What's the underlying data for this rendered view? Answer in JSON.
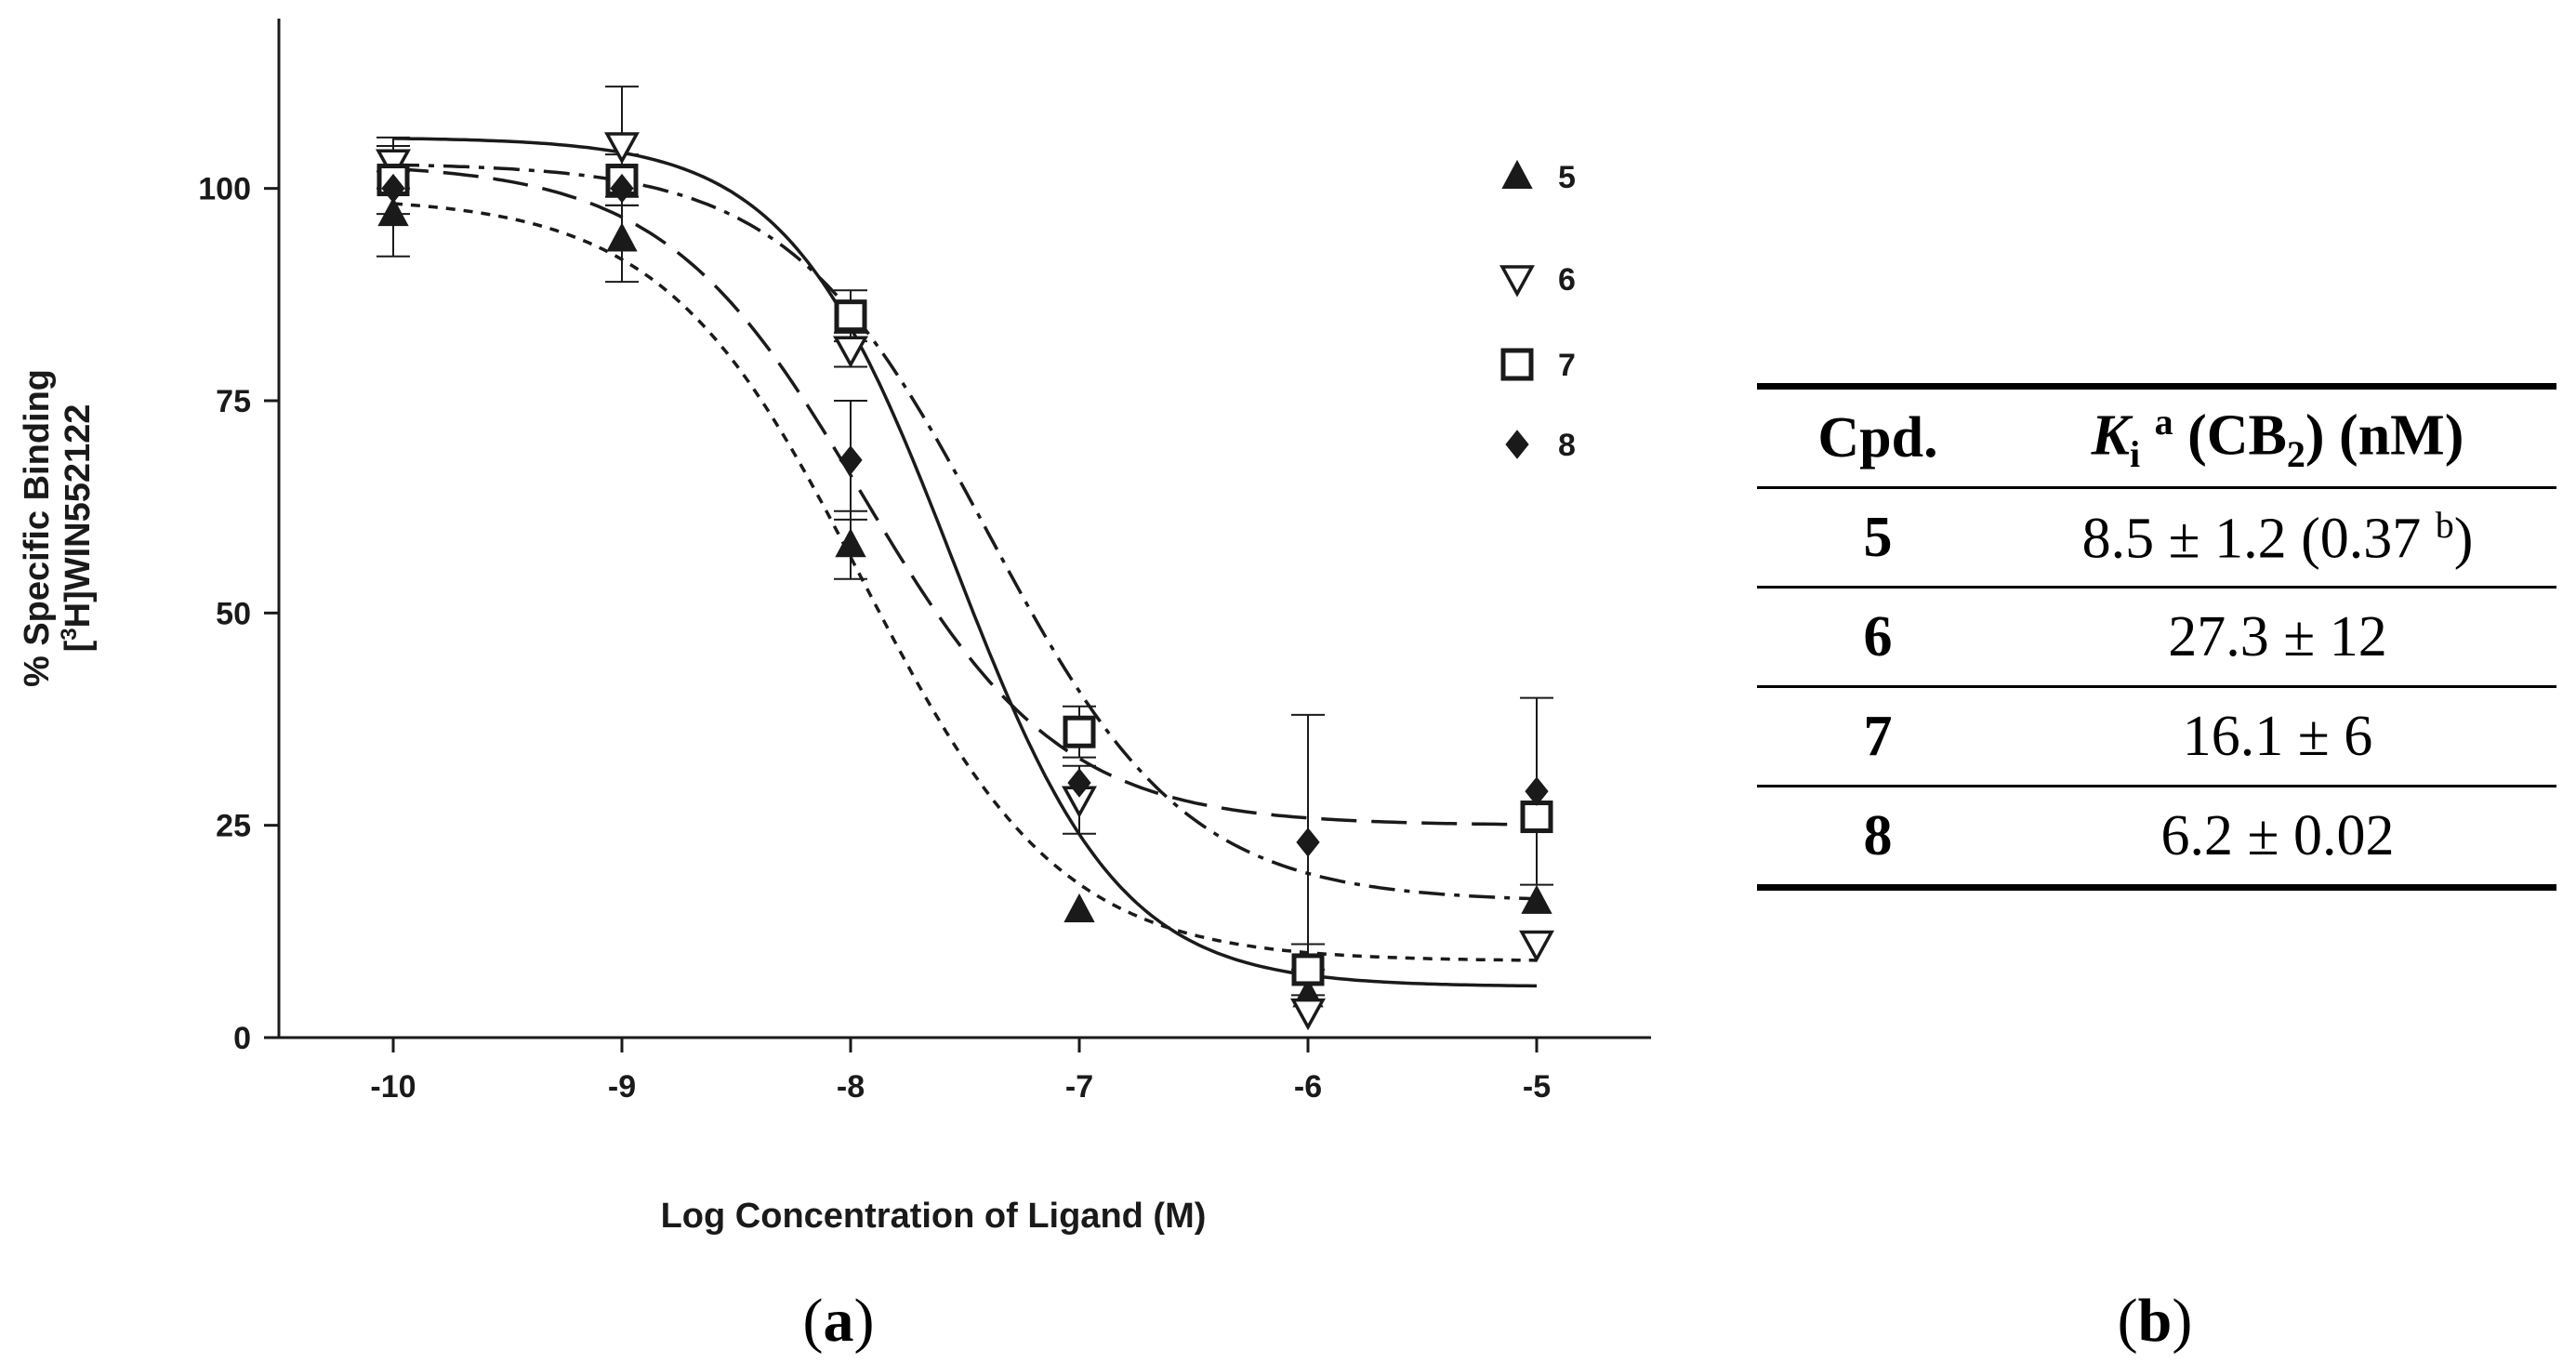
{
  "panel_a_label": "(a)",
  "panel_b_label": "(b)",
  "panel_label_parts": {
    "open": "(",
    "close": ")",
    "a": "a",
    "b": "b"
  },
  "chart_data": {
    "type": "scatter",
    "xlabel": "Log Concentration of Ligand (M)",
    "ylabel_line1": "% Specific Binding",
    "ylabel_line2_prefix": "[",
    "ylabel_line2_sup": "3",
    "ylabel_line2_suffix": "H]WIN552122",
    "xlim": [
      -10.5,
      -4.5
    ],
    "ylim": [
      0,
      120
    ],
    "xticks": [
      -10,
      -9,
      -8,
      -7,
      -6,
      -5
    ],
    "xtick_labels": [
      "-10",
      "-9",
      "-8",
      "-7",
      "-6",
      "-5"
    ],
    "yticks": [
      0,
      25,
      50,
      75,
      100
    ],
    "ytick_labels": [
      "0",
      "25",
      "50",
      "75",
      "100"
    ],
    "legend_position": "top-right",
    "series": [
      {
        "name": "5",
        "marker": "filled-triangle",
        "line_style": "short-dash",
        "x": [
          -10,
          -9,
          -8,
          -7,
          -6,
          -5
        ],
        "y": [
          97,
          94,
          58,
          15,
          5,
          16
        ],
        "err": [
          5,
          5,
          4,
          0,
          0,
          0
        ],
        "fit": {
          "top": 99,
          "bottom": 9,
          "logIC50": -7.95,
          "hill": 1.0
        }
      },
      {
        "name": "6",
        "marker": "open-triangle-down",
        "line_style": "solid",
        "x": [
          -10,
          -9,
          -8,
          -7,
          -6,
          -5
        ],
        "y": [
          103,
          105,
          81,
          28,
          3,
          11
        ],
        "err": [
          3,
          7,
          2,
          4,
          0,
          0
        ],
        "fit": {
          "top": 106,
          "bottom": 6,
          "logIC50": -7.55,
          "hill": 1.2
        }
      },
      {
        "name": "7",
        "marker": "open-square",
        "line_style": "dash-dot",
        "x": [
          -10,
          -9,
          -8,
          -7,
          -6,
          -5
        ],
        "y": [
          101,
          101,
          85,
          36,
          8,
          26
        ],
        "err": [
          4,
          3,
          3,
          3,
          3,
          0
        ],
        "fit": {
          "top": 103,
          "bottom": 16,
          "logIC50": -7.4,
          "hill": 1.0
        }
      },
      {
        "name": "8",
        "marker": "filled-diamond",
        "line_style": "long-dash",
        "x": [
          -10,
          -9,
          -8,
          -7,
          -6,
          -5
        ],
        "y": [
          100,
          100,
          68,
          30,
          23,
          29
        ],
        "err": [
          0,
          0,
          7,
          0,
          15,
          11
        ],
        "fit": {
          "top": 103,
          "bottom": 25,
          "logIC50": -7.95,
          "hill": 1.0
        }
      }
    ]
  },
  "table": {
    "header_cpd": "Cpd.",
    "header_ki_italic": "K",
    "header_ki_sub": "i",
    "header_ki_sup": "a",
    "header_cb_prefix": "(CB",
    "header_cb_sub": "2",
    "header_cb_suffix": ") (nM)",
    "rows": [
      {
        "cpd": "5",
        "value": "8.5 ± 1.2 (0.37 ",
        "sup": "b",
        "tail": ")"
      },
      {
        "cpd": "6",
        "value": "27.3 ± 12"
      },
      {
        "cpd": "7",
        "value": "16.1 ± 6"
      },
      {
        "cpd": "8",
        "value": "6.2 ± 0.02"
      }
    ]
  },
  "colors": {
    "ink": "#1a1a1a",
    "background": "#ffffff"
  }
}
